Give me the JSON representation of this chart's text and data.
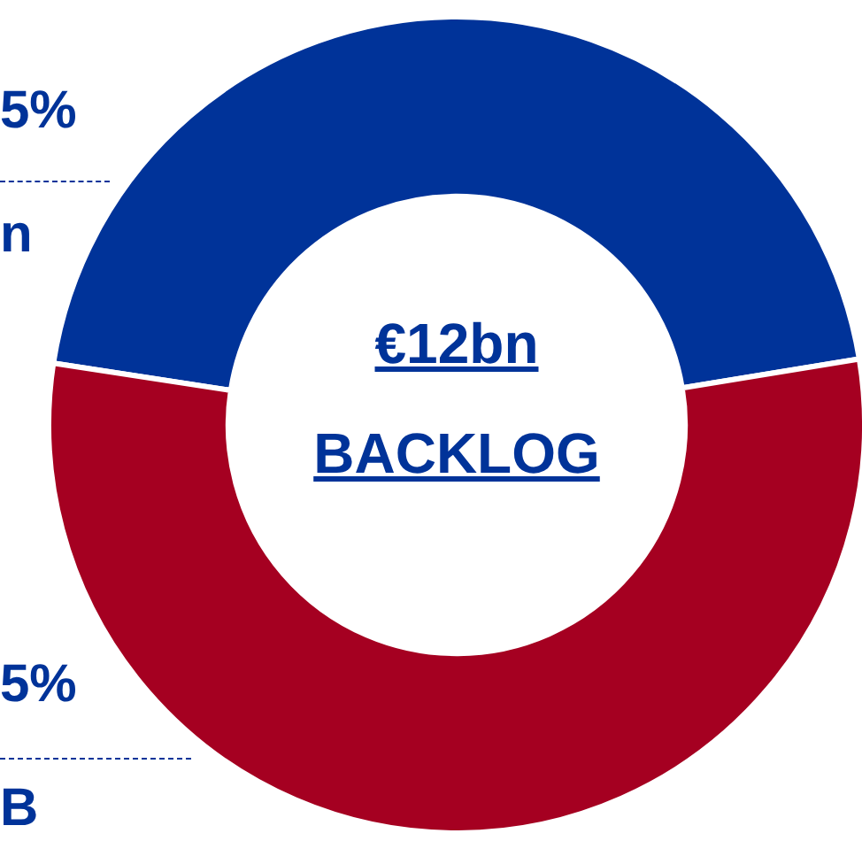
{
  "chart_data": {
    "type": "donut",
    "title": "€12bn",
    "subtitle": "BACKLOG",
    "categories": [
      null,
      null
    ],
    "values": [
      45,
      55
    ],
    "colors": [
      "#003399",
      "#a50021"
    ],
    "annotations": [
      "5%",
      "n",
      "5%",
      "B"
    ],
    "legend": false
  }
}
